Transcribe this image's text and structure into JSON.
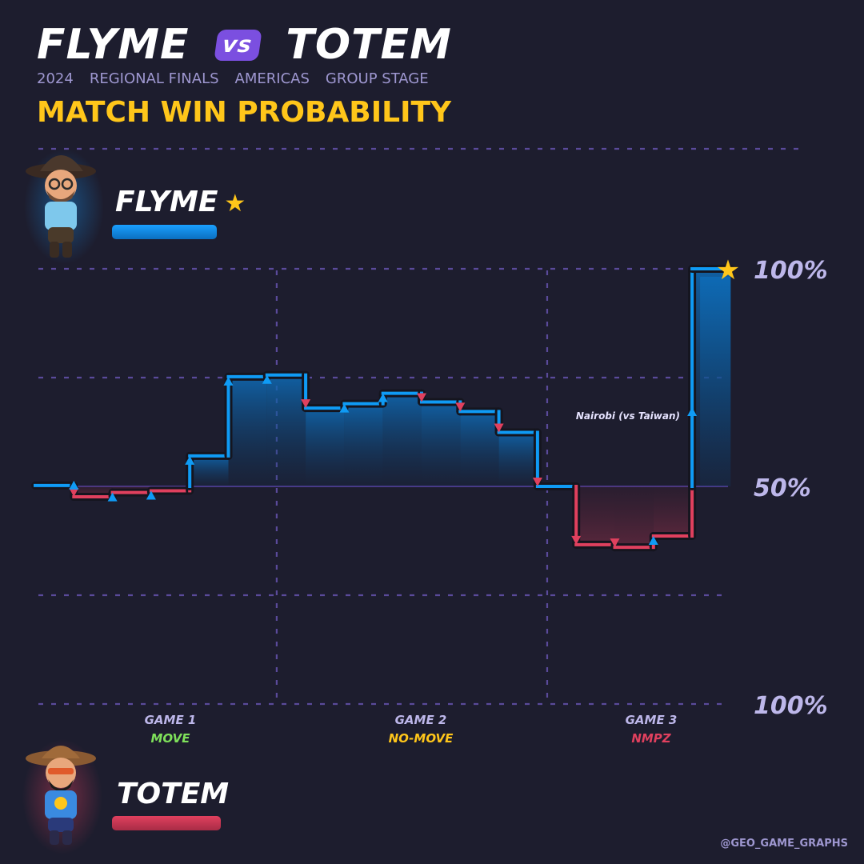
{
  "header": {
    "team_a": "FLYME",
    "vs": "vs",
    "team_b": "TOTEM",
    "subtitle": [
      "2024",
      "REGIONAL FINALS",
      "AMERICAS",
      "GROUP STAGE"
    ],
    "chart_title": "MATCH WIN PROBABILITY"
  },
  "players": {
    "top": {
      "name": "FLYME",
      "color": "#0f8fe8",
      "winner_mark": "star-icon"
    },
    "bottom": {
      "name": "TOTEM",
      "color": "#e0405e"
    }
  },
  "credit": "@GEO_GAME_GRAPHS",
  "chart_data": {
    "type": "line",
    "title": "MATCH WIN PROBABILITY",
    "y_labels": {
      "top": "100%",
      "mid": "50%",
      "bottom": "100%"
    },
    "ylim": [
      0,
      100
    ],
    "games": [
      {
        "label": "GAME 1",
        "mode": "MOVE",
        "mode_color": "#7ee05a"
      },
      {
        "label": "GAME 2",
        "mode": "NO-MOVE",
        "mode_color": "#ffc61a"
      },
      {
        "label": "GAME 3",
        "mode": "NMPZ",
        "mode_color": "#e0405e"
      }
    ],
    "colors": {
      "flyme": "#0f9bf5",
      "totem": "#e0405e"
    },
    "series": [
      {
        "x": 0,
        "p": 50
      },
      {
        "x": 1,
        "p": 50.2
      },
      {
        "x": 2,
        "p": 47.6
      },
      {
        "x": 3,
        "p": 48.6
      },
      {
        "x": 4,
        "p": 49.0
      },
      {
        "x": 5,
        "p": 57.0
      },
      {
        "x": 6,
        "p": 75.2
      },
      {
        "x": 7,
        "p": 75.6
      },
      {
        "x": 8,
        "p": 68.0
      },
      {
        "x": 9,
        "p": 69.0
      },
      {
        "x": 10,
        "p": 71.4
      },
      {
        "x": 11,
        "p": 69.4
      },
      {
        "x": 12,
        "p": 67.2
      },
      {
        "x": 13,
        "p": 62.4
      },
      {
        "x": 14,
        "p": 50.0
      },
      {
        "x": 15,
        "p": 36.6
      },
      {
        "x": 16,
        "p": 36.0
      },
      {
        "x": 17,
        "p": 38.6
      },
      {
        "x": 18,
        "p": 100.0
      }
    ],
    "game_boundaries": [
      6.25,
      13.25
    ],
    "annotation": {
      "at": 17.5,
      "text": "Nairobi (vs Taiwan)"
    },
    "winner": "FLYME"
  }
}
